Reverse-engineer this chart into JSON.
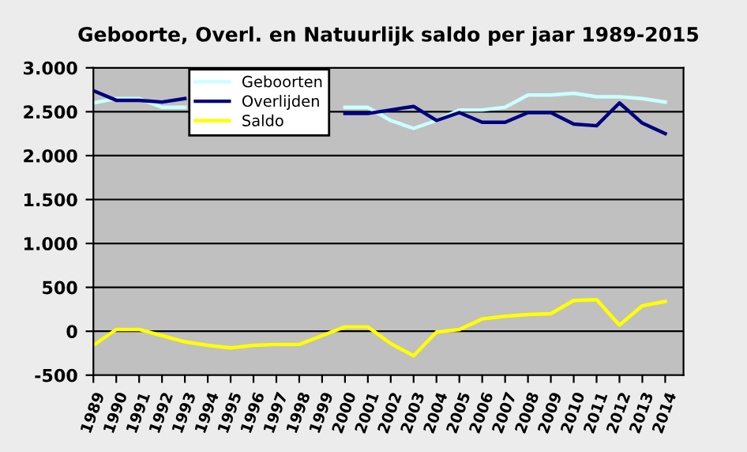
{
  "chart_data": {
    "type": "line",
    "title": "Geboorte, Overl. en Natuurlijk saldo per jaar 1989-2015",
    "categories": [
      "1989",
      "1990",
      "1991",
      "1992",
      "1993",
      "1994",
      "1995",
      "1996",
      "1997",
      "1998",
      "1999",
      "2000",
      "2001",
      "2002",
      "2003",
      "2004",
      "2005",
      "2006",
      "2007",
      "2008",
      "2009",
      "2010",
      "2011",
      "2012",
      "2013",
      "2014"
    ],
    "series": [
      {
        "name": "Geboorten",
        "color": "#ccffff",
        "values": [
          2600,
          2650,
          2650,
          2550,
          2550,
          null,
          null,
          null,
          null,
          null,
          null,
          2550,
          2550,
          2400,
          2310,
          2400,
          2520,
          2520,
          2550,
          2690,
          2690,
          2710,
          2670,
          2670,
          2650,
          2610
        ]
      },
      {
        "name": "Overlijden",
        "color": "#000080",
        "values": [
          2740,
          2630,
          2630,
          2610,
          2650,
          null,
          null,
          null,
          null,
          null,
          null,
          2480,
          2480,
          2520,
          2560,
          2400,
          2490,
          2380,
          2380,
          2490,
          2490,
          2360,
          2340,
          2600,
          2370,
          2250
        ]
      },
      {
        "name": "Saldo",
        "color": "#ffff00",
        "values": [
          -160,
          20,
          20,
          -50,
          -120,
          -160,
          -190,
          -160,
          -150,
          -150,
          -50,
          50,
          50,
          -140,
          -280,
          -10,
          20,
          140,
          170,
          190,
          200,
          350,
          360,
          70,
          290,
          340
        ]
      }
    ],
    "ylim": [
      -500,
      3000
    ],
    "yticks": [
      {
        "value": -500,
        "label": "-500"
      },
      0,
      500,
      {
        "value": 1000,
        "label": "1.000"
      },
      {
        "value": 1500,
        "label": "1.500"
      },
      {
        "value": 2000,
        "label": "2.000"
      },
      {
        "value": 2500,
        "label": "2.500"
      },
      {
        "value": 3000,
        "label": "3.000"
      }
    ],
    "grid": "y",
    "legend": "top left",
    "marker": "none",
    "line_style": "solid"
  }
}
